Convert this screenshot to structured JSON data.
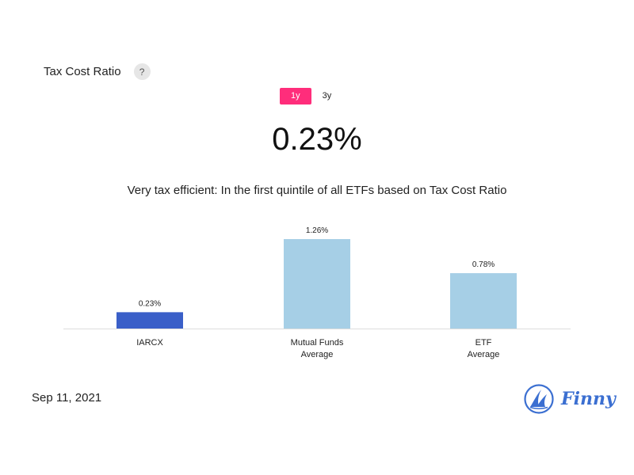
{
  "header": {
    "title": "Tax Cost Ratio",
    "help_label": "?"
  },
  "tabs": [
    {
      "label": "1y",
      "active": true
    },
    {
      "label": "3y",
      "active": false
    }
  ],
  "value": "0.23%",
  "description": "Very tax efficient: In the first quintile of all ETFs based on Tax Cost Ratio",
  "chart_data": {
    "type": "bar",
    "categories": [
      [
        "IARCX"
      ],
      [
        "Mutual Funds",
        "Average"
      ],
      [
        "ETF",
        "Average"
      ]
    ],
    "values": [
      0.23,
      1.26,
      0.78
    ],
    "value_labels": [
      "0.23%",
      "1.26%",
      "0.78%"
    ],
    "colors": [
      "#3a5fc8",
      "#a6cfe6",
      "#a6cfe6"
    ],
    "ylim": [
      0,
      1.26
    ],
    "grid": false
  },
  "footer": {
    "date": "Sep 11, 2021",
    "brand": "Finny"
  },
  "colors": {
    "accent": "#ff2d7b",
    "brand": "#3b6fd1"
  }
}
